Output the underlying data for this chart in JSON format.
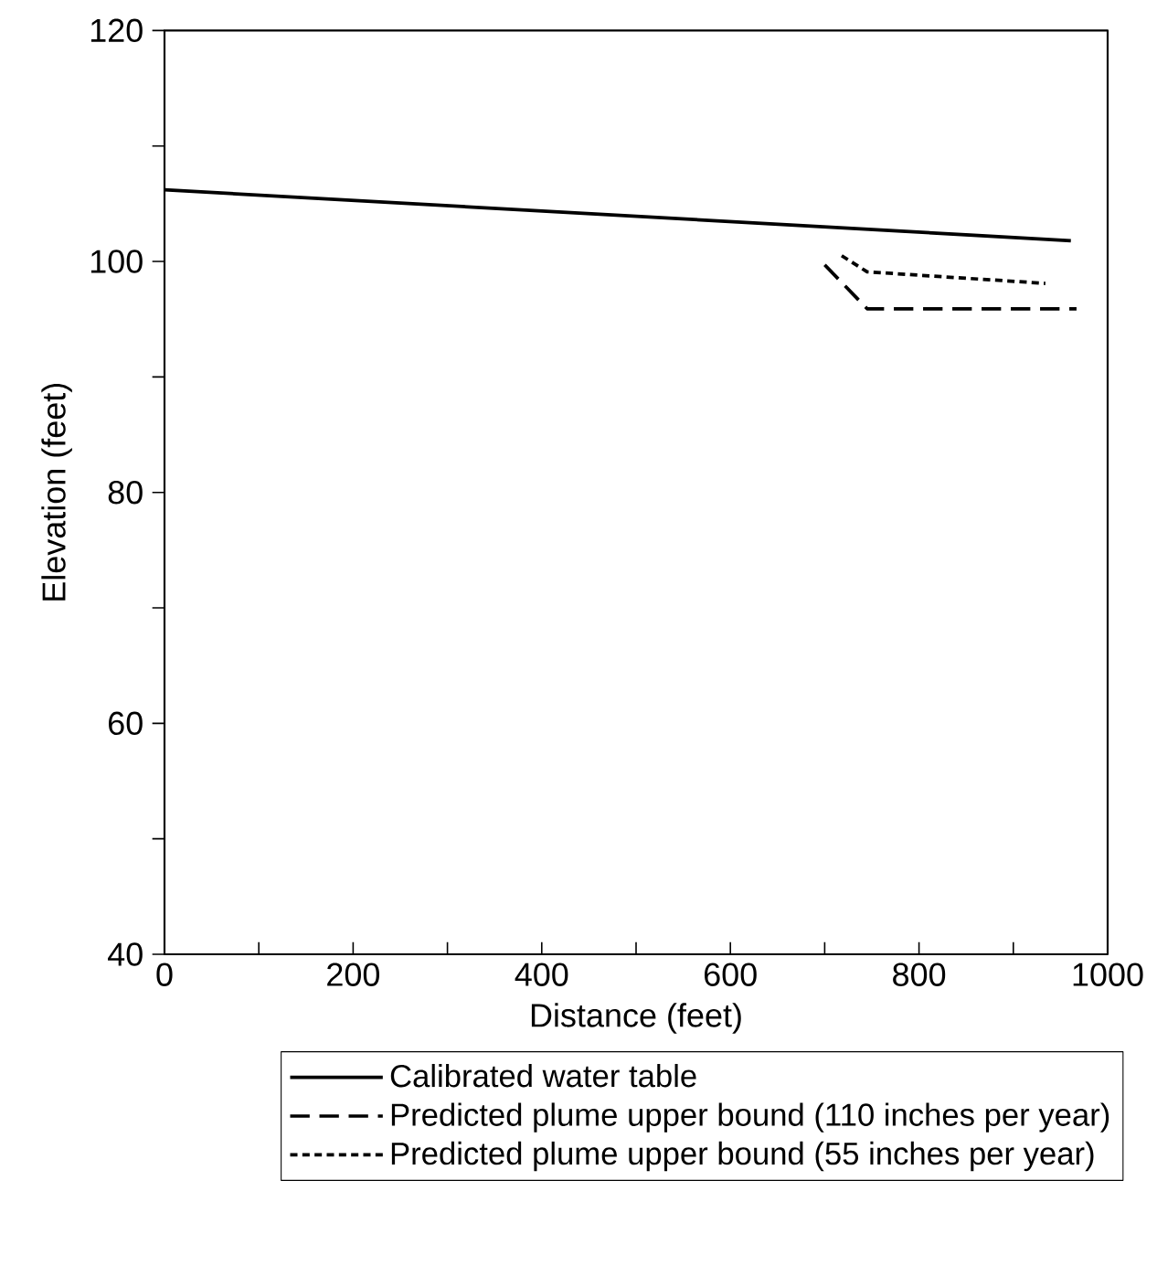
{
  "chart_data": {
    "type": "line",
    "xlabel": "Distance (feet)",
    "ylabel": "Elevation (feet)",
    "xlim": [
      0,
      1000
    ],
    "ylim": [
      40,
      120
    ],
    "xticks": [
      0,
      {
        "value": 100,
        "label": null
      },
      200,
      {
        "value": 300,
        "label": null
      },
      400,
      {
        "value": 500,
        "label": null
      },
      600,
      {
        "value": 700,
        "label": null
      },
      800,
      {
        "value": 900,
        "label": null
      },
      1000
    ],
    "yticks": [
      40,
      {
        "value": 50,
        "label": null
      },
      60,
      {
        "value": 70,
        "label": null
      },
      80,
      {
        "value": 90,
        "label": null
      },
      100,
      {
        "value": 110,
        "label": null
      },
      120
    ],
    "grid": false,
    "legend": "bottom",
    "marker": "none",
    "series": [
      {
        "name": "Calibrated water table",
        "color": "#000000",
        "line_style": "solid",
        "x": [
          0,
          961
        ],
        "values": [
          106.2,
          101.8
        ]
      },
      {
        "name": "Predicted plume upper bound (110 inches per year)",
        "color": "#000000",
        "line_style": "dashed",
        "x": [
          700,
          745,
          967
        ],
        "values": [
          99.7,
          95.9,
          95.9
        ]
      },
      {
        "name": "Predicted plume upper bound (55 inches per year)",
        "color": "#000000",
        "line_style": "dotted",
        "x": [
          718,
          745,
          934
        ],
        "values": [
          100.5,
          99.1,
          98.1
        ]
      }
    ]
  }
}
